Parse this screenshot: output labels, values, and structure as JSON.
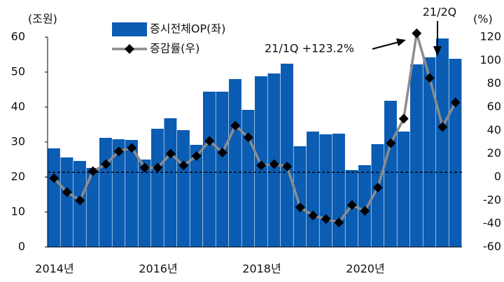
{
  "chart_data": {
    "type": "bar_line",
    "y_label": "(조원)",
    "y2_label": "(%)",
    "categories": [
      "2014년",
      null,
      null,
      null,
      null,
      null,
      null,
      null,
      "2016년",
      null,
      null,
      null,
      null,
      null,
      null,
      null,
      "2018년",
      null,
      null,
      null,
      null,
      null,
      null,
      null,
      "2020년",
      null,
      null,
      null,
      null,
      null,
      null,
      null
    ],
    "series": [
      {
        "name": "증시전체OP(좌)",
        "type": "bar",
        "color": "#0b5cb3",
        "values": [
          28.2,
          25.6,
          24.6,
          22.6,
          31.2,
          30.8,
          30.6,
          25,
          33.8,
          36.8,
          33.4,
          29.2,
          44.4,
          44.4,
          48,
          39.2,
          48.8,
          49.6,
          52.4,
          28.8,
          33,
          32.2,
          32.4,
          22,
          23.4,
          29.4,
          41.8,
          33,
          52.2,
          54.2,
          59.6,
          53.8
        ]
      },
      {
        "name": "증감률(우)",
        "type": "line",
        "axis": "y2",
        "color": "#8c8c8c",
        "marker_color": "#000000",
        "values": [
          -1,
          -13,
          -20,
          5,
          11,
          22,
          25,
          8,
          8,
          20,
          10,
          18,
          31,
          21,
          44,
          34,
          10,
          11,
          9,
          -26,
          -33,
          -36,
          -39,
          -24,
          -29,
          -9,
          29,
          50,
          123.2,
          85,
          43,
          64
        ]
      }
    ],
    "ylim": [
      0,
      60
    ],
    "yticks": [
      0,
      10,
      20,
      30,
      40,
      50,
      60
    ],
    "y2lim": [
      -60,
      120
    ],
    "y2ticks": [
      -60,
      -40,
      -20,
      0,
      20,
      40,
      60,
      80,
      100,
      120
    ],
    "y2_reference": 4,
    "annotations": [
      "21/1Q +123.2%",
      "21/2Q"
    ]
  }
}
